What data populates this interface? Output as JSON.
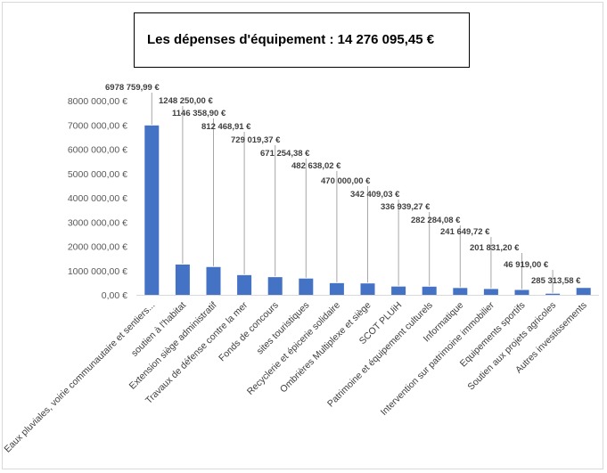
{
  "chart_data": {
    "type": "bar",
    "title": "Les dépenses d'équipement : 14 276 095,45 €",
    "ylim": [
      0,
      8000000
    ],
    "yticks": [
      0,
      1000000,
      2000000,
      3000000,
      4000000,
      5000000,
      6000000,
      7000000,
      8000000
    ],
    "ytick_labels": [
      "0,00 €",
      "1000 000,00 €",
      "2000 000,00 €",
      "3000 000,00 €",
      "4000 000,00 €",
      "5000 000,00 €",
      "6000 000,00 €",
      "7000 000,00 €",
      "8000 000,00 €"
    ],
    "grid": false,
    "legend": "none",
    "bar_color": "#4472C4",
    "categories": [
      "Eaux pluviales, voirie communautaire et sentiers...",
      "soutien à l'habitat",
      "Extension siège administratif",
      "Travaux de défense contre la mer",
      "Fonds de concours",
      "sites touristiques",
      "Recyclerie et épicerie solidaire",
      "Ombrières Multiplexe et siège",
      "SCOT PLUiH",
      "Patrimoine et équipement culturels",
      "Informatique",
      "Intervention sur patrimoine immobilier",
      "Equipements sportifs",
      "Soutien aux projets agricoles",
      "Autres investissements"
    ],
    "values": [
      6978759.99,
      1248250.0,
      1146358.9,
      812468.91,
      729019.37,
      671254.38,
      482638.02,
      470000.0,
      342409.03,
      336939.27,
      282284.08,
      241649.72,
      201831.2,
      46919.0,
      285313.58
    ],
    "data_labels": [
      "6978 759,99 €",
      "1248 250,00 €",
      "1146 358,90 €",
      "812 468,91 €",
      "729 019,37 €",
      "671 254,38 €",
      "482 638,02 €",
      "470 000,00 €",
      "342 409,03 €",
      "336 939,27 €",
      "282 284,08 €",
      "241 649,72 €",
      "201 831,20 €",
      "46 919,00 €",
      "285 313,58 €"
    ]
  }
}
